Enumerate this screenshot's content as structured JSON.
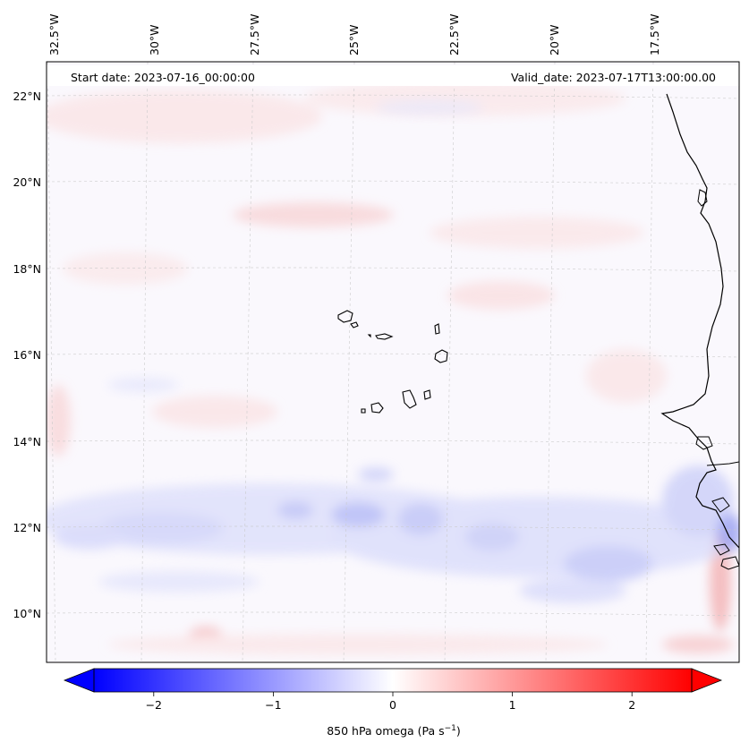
{
  "header": {
    "start_label": "Start date: 2023-07-16_00:00:00",
    "valid_label": "Valid_date: 2023-07-17T13:00:00.00"
  },
  "map": {
    "projection": "Lambert conformal",
    "region": "Cape Verde Islands and West African coast",
    "field": "850 hPa omega",
    "longitude_labels": [
      "32.5°W",
      "30°W",
      "27.5°W",
      "25°W",
      "22.5°W",
      "20°W",
      "17.5°W"
    ],
    "latitude_labels": [
      "22°N",
      "20°N",
      "18°N",
      "16°N",
      "14°N",
      "12°N",
      "10°N"
    ],
    "gridlines": true,
    "coastline_color": "#000000"
  },
  "colorbar": {
    "title_main": "850 hPa omega (Pa s",
    "title_exp": "−1",
    "title_close": ")",
    "ticks": [
      {
        "value": -2,
        "label": "−2"
      },
      {
        "value": -1,
        "label": "−1"
      },
      {
        "value": 0,
        "label": "0"
      },
      {
        "value": 1,
        "label": "1"
      },
      {
        "value": 2,
        "label": "2"
      }
    ],
    "vmin": -2.5,
    "vmax": 2.5,
    "extend": "both",
    "colors": {
      "negative": "#0000ff",
      "zero": "#ffffff",
      "positive": "#ff0000"
    }
  }
}
